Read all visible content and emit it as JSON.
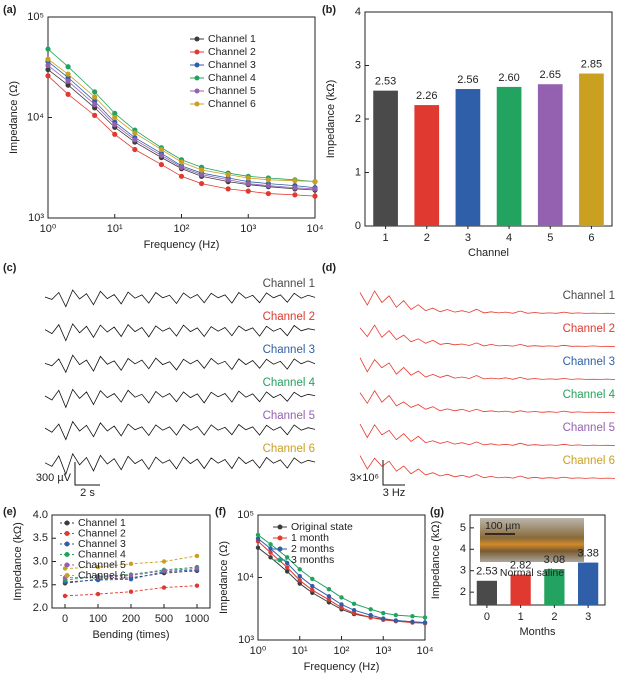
{
  "chart_data": [
    {
      "type": "line",
      "panel_label": "(a)",
      "xlabel": "Frequency (Hz)",
      "ylabel": "Impedance (Ω)",
      "xscale": "log",
      "yscale": "log",
      "x": [
        1,
        2,
        5,
        10,
        20,
        50,
        100,
        200,
        500,
        1000,
        2000,
        5000,
        10000
      ],
      "xlim": [
        1,
        10000
      ],
      "ylim": [
        1000,
        100000
      ],
      "xticks": [
        {
          "value": 1,
          "label": "10⁰"
        },
        {
          "value": 10,
          "label": "10¹"
        },
        {
          "value": 100,
          "label": "10²"
        },
        {
          "value": 1000,
          "label": "10³"
        },
        {
          "value": 10000,
          "label": "10⁴"
        }
      ],
      "yticks": [
        {
          "value": 1000,
          "label": "10³"
        },
        {
          "value": 10000,
          "label": "10⁴"
        },
        {
          "value": 100000,
          "label": "10⁵"
        }
      ],
      "legend": "upper right",
      "series": [
        {
          "name": "Channel 1",
          "color": "#3c3c3c",
          "values": [
            30000,
            21000,
            12500,
            8000,
            5700,
            4000,
            3100,
            2600,
            2300,
            2150,
            2050,
            1950,
            1900
          ]
        },
        {
          "name": "Channel 2",
          "color": "#e0392f",
          "values": [
            26000,
            17000,
            10500,
            6800,
            4800,
            3400,
            2600,
            2200,
            1950,
            1850,
            1750,
            1700,
            1650
          ]
        },
        {
          "name": "Channel 3",
          "color": "#2f5fa8",
          "values": [
            36000,
            25000,
            14500,
            9000,
            6300,
            4400,
            3300,
            2800,
            2500,
            2300,
            2200,
            2100,
            2000
          ]
        },
        {
          "name": "Channel 4",
          "color": "#22a35f",
          "values": [
            48000,
            32000,
            18000,
            11000,
            7500,
            5000,
            3800,
            3200,
            2800,
            2600,
            2500,
            2400,
            2300
          ]
        },
        {
          "name": "Channel 5",
          "color": "#9461b0",
          "values": [
            33000,
            23000,
            13500,
            8500,
            6000,
            4200,
            3200,
            2700,
            2400,
            2200,
            2100,
            2000,
            1950
          ]
        },
        {
          "name": "Channel 6",
          "color": "#c9a020",
          "values": [
            38000,
            27000,
            16000,
            10000,
            7000,
            4800,
            3600,
            3000,
            2700,
            2500,
            2400,
            2350,
            2300
          ]
        }
      ]
    },
    {
      "type": "bar",
      "panel_label": "(b)",
      "xlabel": "Channel",
      "ylabel": "Impedance (kΩ)",
      "categories": [
        "1",
        "2",
        "3",
        "4",
        "5",
        "6"
      ],
      "values": [
        2.53,
        2.26,
        2.56,
        2.6,
        2.65,
        2.85
      ],
      "value_labels": [
        "2.53",
        "2.26",
        "2.56",
        "2.60",
        "2.65",
        "2.85"
      ],
      "colors": [
        "#4a4a4a",
        "#e0392f",
        "#2f5fa8",
        "#22a35f",
        "#9461b0",
        "#c9a020"
      ],
      "ylim": [
        0,
        4
      ],
      "yticks": [
        0,
        1,
        2,
        3,
        4
      ]
    },
    {
      "type": "trace",
      "panel_label": "(c)",
      "line_color": "#111111",
      "ylim": [
        -320,
        220
      ],
      "scalebar": {
        "y": "300 µV",
        "x": "2 s"
      },
      "series": [
        {
          "name": "Channel 1",
          "color": "#4a4a4a",
          "values": [
            0,
            -60,
            110,
            -240,
            170,
            -50,
            80,
            -190,
            140,
            -40,
            60,
            -170,
            120,
            -30,
            50,
            -150,
            110,
            -20,
            40,
            -160,
            100,
            -30,
            60,
            -140,
            90,
            -20,
            50,
            -150,
            110,
            -30,
            40,
            -140,
            100,
            -20,
            50,
            -130,
            90,
            -30,
            40,
            -10
          ]
        },
        {
          "name": "Channel 2",
          "color": "#e0392f",
          "values": [
            10,
            -90,
            130,
            -260,
            150,
            -70,
            90,
            -180,
            120,
            -50,
            70,
            -160,
            130,
            -40,
            60,
            -170,
            100,
            -30,
            50,
            -150,
            120,
            -40,
            50,
            -160,
            80,
            -30,
            60,
            -140,
            100,
            -20,
            50,
            -150,
            90,
            -30,
            40,
            -140,
            110,
            -20,
            30,
            0
          ]
        },
        {
          "name": "Channel 3",
          "color": "#2f5fa8",
          "values": [
            -10,
            -70,
            100,
            -230,
            190,
            -40,
            70,
            -200,
            160,
            -30,
            50,
            -180,
            110,
            -20,
            70,
            -140,
            120,
            -40,
            30,
            -170,
            90,
            -20,
            70,
            -130,
            110,
            -30,
            40,
            -160,
            100,
            -40,
            60,
            -130,
            90,
            -30,
            40,
            -150,
            100,
            -20,
            50,
            -20
          ]
        },
        {
          "name": "Channel 4",
          "color": "#22a35f",
          "values": [
            0,
            -100,
            140,
            -280,
            160,
            -60,
            100,
            -210,
            130,
            -40,
            60,
            -150,
            140,
            -30,
            40,
            -170,
            110,
            -30,
            60,
            -140,
            100,
            -40,
            50,
            -170,
            90,
            -20,
            60,
            -150,
            120,
            -30,
            50,
            -140,
            100,
            -40,
            40,
            -130,
            90,
            -20,
            40,
            10
          ]
        },
        {
          "name": "Channel 5",
          "color": "#9461b0",
          "values": [
            20,
            -80,
            120,
            -260,
            180,
            -50,
            90,
            -190,
            150,
            -50,
            70,
            -170,
            120,
            -20,
            50,
            -160,
            100,
            -30,
            50,
            -150,
            110,
            -30,
            60,
            -150,
            100,
            -30,
            40,
            -140,
            110,
            -20,
            50,
            -150,
            90,
            -30,
            50,
            -140,
            100,
            -30,
            30,
            -10
          ]
        },
        {
          "name": "Channel 6",
          "color": "#c9a020",
          "values": [
            -20,
            -110,
            150,
            -300,
            200,
            -70,
            110,
            -220,
            160,
            -50,
            80,
            -190,
            140,
            -40,
            60,
            -180,
            120,
            -30,
            50,
            -170,
            120,
            -40,
            70,
            -160,
            100,
            -30,
            60,
            -160,
            120,
            -40,
            50,
            -150,
            110,
            -30,
            50,
            -150,
            100,
            -30,
            40,
            0
          ]
        }
      ]
    },
    {
      "type": "trace",
      "panel_label": "(d)",
      "line_color": "#e8392e",
      "ylim": [
        0,
        7000000
      ],
      "scalebar": {
        "y": "3×10⁶",
        "x": "3 Hz"
      },
      "series": [
        {
          "name": "Channel 1",
          "color": "#4a4a4a",
          "values": [
            5800000.0,
            2400000.0,
            6200000.0,
            3100000.0,
            4900000.0,
            1800000.0,
            3600000.0,
            1200000.0,
            2500000.0,
            900000.0,
            1600000.0,
            600000.0,
            1200000.0,
            500000.0,
            900000.0,
            400000.0,
            1300000.0,
            300000.0,
            600000.0,
            300000.0,
            500000.0,
            200000.0,
            800000.0,
            200000.0,
            400000.0,
            200000.0,
            300000.0,
            200000.0,
            500000.0,
            200000.0,
            300000.0,
            150000.0,
            250000.0,
            150000.0,
            200000.0,
            150000.0
          ]
        },
        {
          "name": "Channel 2",
          "color": "#e0392f",
          "values": [
            5200000.0,
            2800000.0,
            5900000.0,
            2600000.0,
            4400000.0,
            2000000.0,
            3200000.0,
            1400000.0,
            2200000.0,
            1000000.0,
            1800000.0,
            700000.0,
            1000000.0,
            600000.0,
            800000.0,
            400000.0,
            1100000.0,
            300000.0,
            700000.0,
            300000.0,
            400000.0,
            250000.0,
            700000.0,
            200000.0,
            350000.0,
            200000.0,
            300000.0,
            150000.0,
            450000.0,
            200000.0,
            250000.0,
            150000.0,
            300000.0,
            150000.0,
            200000.0,
            100000.0
          ]
        },
        {
          "name": "Channel 3",
          "color": "#2f5fa8",
          "values": [
            6000000.0,
            2200000.0,
            5500000.0,
            3300000.0,
            4600000.0,
            1600000.0,
            3400000.0,
            1300000.0,
            2400000.0,
            800000.0,
            1500000.0,
            700000.0,
            1300000.0,
            500000.0,
            800000.0,
            400000.0,
            1200000.0,
            300000.0,
            500000.0,
            300000.0,
            600000.0,
            200000.0,
            700000.0,
            200000.0,
            400000.0,
            150000.0,
            300000.0,
            200000.0,
            400000.0,
            150000.0,
            300000.0,
            150000.0,
            200000.0,
            150000.0,
            250000.0,
            100000.0
          ]
        },
        {
          "name": "Channel 4",
          "color": "#22a35f",
          "values": [
            5500000.0,
            2600000.0,
            6000000.0,
            2900000.0,
            4700000.0,
            1900000.0,
            3000000.0,
            1500000.0,
            2300000.0,
            1000000.0,
            1700000.0,
            600000.0,
            1100000.0,
            600000.0,
            1000000.0,
            400000.0,
            1000000.0,
            350000.0,
            600000.0,
            300000.0,
            500000.0,
            200000.0,
            600000.0,
            250000.0,
            400000.0,
            200000.0,
            350000.0,
            150000.0,
            500000.0,
            200000.0,
            300000.0,
            150000.0,
            250000.0,
            100000.0,
            200000.0,
            150000.0
          ]
        },
        {
          "name": "Channel 5",
          "color": "#9461b0",
          "values": [
            5900000.0,
            2300000.0,
            5700000.0,
            3000000.0,
            4200000.0,
            1700000.0,
            3300000.0,
            1200000.0,
            2600000.0,
            900000.0,
            1400000.0,
            700000.0,
            1200000.0,
            500000.0,
            900000.0,
            350000.0,
            1100000.0,
            300000.0,
            600000.0,
            250000.0,
            450000.0,
            200000.0,
            750000.0,
            200000.0,
            350000.0,
            200000.0,
            300000.0,
            150000.0,
            450000.0,
            150000.0,
            300000.0,
            100000.0,
            250000.0,
            150000.0,
            200000.0,
            100000.0
          ]
        },
        {
          "name": "Channel 6",
          "color": "#c9a020",
          "values": [
            6300000.0,
            2700000.0,
            5600000.0,
            3400000.0,
            4800000.0,
            2100000.0,
            3500000.0,
            1400000.0,
            2700000.0,
            1100000.0,
            1700000.0,
            800000.0,
            1300000.0,
            600000.0,
            1000000.0,
            450000.0,
            1200000.0,
            350000.0,
            700000.0,
            300000.0,
            500000.0,
            250000.0,
            800000.0,
            200000.0,
            450000.0,
            200000.0,
            350000.0,
            200000.0,
            500000.0,
            200000.0,
            300000.0,
            150000.0,
            300000.0,
            150000.0,
            250000.0,
            150000.0
          ]
        }
      ]
    },
    {
      "type": "line",
      "panel_label": "(e)",
      "xlabel": "Bending (times)",
      "ylabel": "Impedance (kΩ)",
      "linestyle": "dashed",
      "categories": [
        "0",
        "100",
        "200",
        "500",
        "1000"
      ],
      "ylim": [
        2.0,
        4.0
      ],
      "yticks": [
        {
          "value": 2.0,
          "label": "2.0"
        },
        {
          "value": 2.5,
          "label": "2.5"
        },
        {
          "value": 3.0,
          "label": "3.0"
        },
        {
          "value": 3.5,
          "label": "3.5"
        },
        {
          "value": 4.0,
          "label": "4.0"
        }
      ],
      "legend": "upper left",
      "series": [
        {
          "name": "Channel 1",
          "color": "#3c3c3c",
          "values": [
            2.53,
            2.62,
            2.65,
            2.75,
            2.8
          ]
        },
        {
          "name": "Channel 2",
          "color": "#e0392f",
          "values": [
            2.26,
            2.3,
            2.35,
            2.44,
            2.48
          ]
        },
        {
          "name": "Channel 3",
          "color": "#2f5fa8",
          "values": [
            2.56,
            2.6,
            2.62,
            2.78,
            2.82
          ]
        },
        {
          "name": "Channel 4",
          "color": "#22a35f",
          "values": [
            2.6,
            2.68,
            2.72,
            2.82,
            2.88
          ]
        },
        {
          "name": "Channel 5",
          "color": "#9461b0",
          "values": [
            2.65,
            2.66,
            2.7,
            2.8,
            2.85
          ]
        },
        {
          "name": "Channel 6",
          "color": "#c9a020",
          "values": [
            2.85,
            2.88,
            2.95,
            3.0,
            3.12
          ]
        }
      ]
    },
    {
      "type": "line",
      "panel_label": "(f)",
      "xlabel": "Frequency (Hz)",
      "ylabel": "Impedance (Ω)",
      "xscale": "log",
      "yscale": "log",
      "x": [
        1,
        2,
        5,
        10,
        20,
        50,
        100,
        200,
        500,
        1000,
        2000,
        5000,
        10000
      ],
      "xlim": [
        1,
        10000
      ],
      "ylim": [
        1000,
        100000
      ],
      "xticks": [
        {
          "value": 1,
          "label": "10⁰"
        },
        {
          "value": 10,
          "label": "10¹"
        },
        {
          "value": 100,
          "label": "10²"
        },
        {
          "value": 1000,
          "label": "10³"
        },
        {
          "value": 10000,
          "label": "10⁴"
        }
      ],
      "yticks": [
        {
          "value": 1000,
          "label": "10³"
        },
        {
          "value": 10000,
          "label": "10⁴"
        },
        {
          "value": 100000,
          "label": "10⁵"
        }
      ],
      "legend": "upper right",
      "series": [
        {
          "name": "Original state",
          "color": "#3c3c3c",
          "values": [
            30000,
            21000,
            12500,
            8000,
            5700,
            4000,
            3100,
            2600,
            2300,
            2150,
            2050,
            1950,
            1900
          ]
        },
        {
          "name": "1 month",
          "color": "#e0392f",
          "values": [
            38000,
            25000,
            14500,
            9000,
            6300,
            4400,
            3300,
            2700,
            2300,
            2100,
            2000,
            1900,
            1850
          ]
        },
        {
          "name": "2 months",
          "color": "#2f5fa8",
          "values": [
            42000,
            29000,
            17000,
            10500,
            7300,
            5000,
            3700,
            3000,
            2500,
            2200,
            2050,
            1950,
            1900
          ]
        },
        {
          "name": "3 months",
          "color": "#22a35f",
          "values": [
            48000,
            34000,
            21000,
            13500,
            9500,
            6500,
            4800,
            3800,
            3100,
            2700,
            2500,
            2400,
            2300
          ]
        }
      ]
    },
    {
      "type": "bar",
      "panel_label": "(g)",
      "xlabel": "Months",
      "ylabel": "Impedance (kΩ)",
      "categories": [
        "0",
        "1",
        "2",
        "3"
      ],
      "values": [
        2.53,
        2.82,
        3.08,
        3.38
      ],
      "colors": [
        "#4a4a4a",
        "#e0392f",
        "#22a35f",
        "#2f5fa8"
      ],
      "ylim": [
        1.4,
        5.6
      ],
      "yticks": [
        2,
        3,
        4,
        5
      ],
      "annotations": [
        "100 µm",
        "Normal saline"
      ]
    }
  ]
}
